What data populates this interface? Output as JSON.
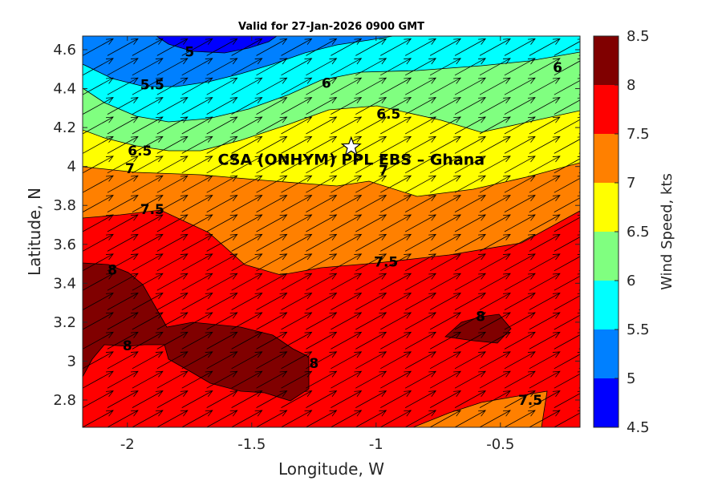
{
  "chart_data": {
    "type": "contour",
    "title": "Valid for 27-Jan-2026 0900 GMT",
    "xlabel": "Longitude, W",
    "ylabel": "Latitude, N",
    "xlim": [
      -2.18,
      -0.18
    ],
    "ylim": [
      2.66,
      4.67
    ],
    "xticks": [
      -2,
      -1.5,
      -1,
      -0.5
    ],
    "xtick_labels": [
      "-2",
      "-1.5",
      "-1",
      "-0.5"
    ],
    "yticks": [
      2.8,
      3.0,
      3.2,
      3.4,
      3.6,
      3.8,
      4.0,
      4.2,
      4.4,
      4.6
    ],
    "ytick_labels": [
      "2.8",
      "3",
      "3.2",
      "3.4",
      "3.6",
      "3.8",
      "4",
      "4.2",
      "4.4",
      "4.6"
    ],
    "colorbar": {
      "label": "Wind Speed, kts",
      "levels": [
        4.5,
        5,
        5.5,
        6,
        6.5,
        7,
        7.5,
        8,
        8.5
      ],
      "tick_labels": [
        "4.5",
        "5",
        "5.5",
        "6",
        "6.5",
        "7",
        "7.5",
        "8",
        "8.5"
      ],
      "colors": [
        "#0000ff",
        "#0080ff",
        "#00ffff",
        "#80ff80",
        "#ffff00",
        "#ff8000",
        "#ff0000",
        "#800000"
      ]
    },
    "contour_labels": [
      {
        "text": "5",
        "lon": -1.75,
        "lat": 4.59
      },
      {
        "text": "5.5",
        "lon": -1.9,
        "lat": 4.42
      },
      {
        "text": "6",
        "lon": -1.2,
        "lat": 4.43
      },
      {
        "text": "6",
        "lon": -0.27,
        "lat": 4.51
      },
      {
        "text": "6.5",
        "lon": -0.95,
        "lat": 4.27
      },
      {
        "text": "6.5",
        "lon": -1.95,
        "lat": 4.08
      },
      {
        "text": "7",
        "lon": -1.99,
        "lat": 3.99
      },
      {
        "text": "7",
        "lon": -0.97,
        "lat": 3.98
      },
      {
        "text": "7.5",
        "lon": -1.9,
        "lat": 3.78
      },
      {
        "text": "7.5",
        "lon": -0.96,
        "lat": 3.51
      },
      {
        "text": "7.5",
        "lon": -0.38,
        "lat": 2.8
      },
      {
        "text": "8",
        "lon": -2.06,
        "lat": 3.47
      },
      {
        "text": "8",
        "lon": -2.0,
        "lat": 3.08
      },
      {
        "text": "8",
        "lon": -1.25,
        "lat": 2.99
      },
      {
        "text": "8",
        "lon": -0.58,
        "lat": 3.23
      }
    ],
    "wind_vectors": {
      "lon_start": -2.18,
      "lon_step": 0.0998,
      "count_x": 21,
      "lat_start": 2.66,
      "lat_step": 0.1005,
      "count_y": 21,
      "direction": "from southwest (towards northeast)"
    },
    "site": {
      "label": "CSA (ONHYM) PPL EBS  – Ghana",
      "lon": -1.1,
      "lat": 4.1,
      "marker": "star"
    }
  }
}
